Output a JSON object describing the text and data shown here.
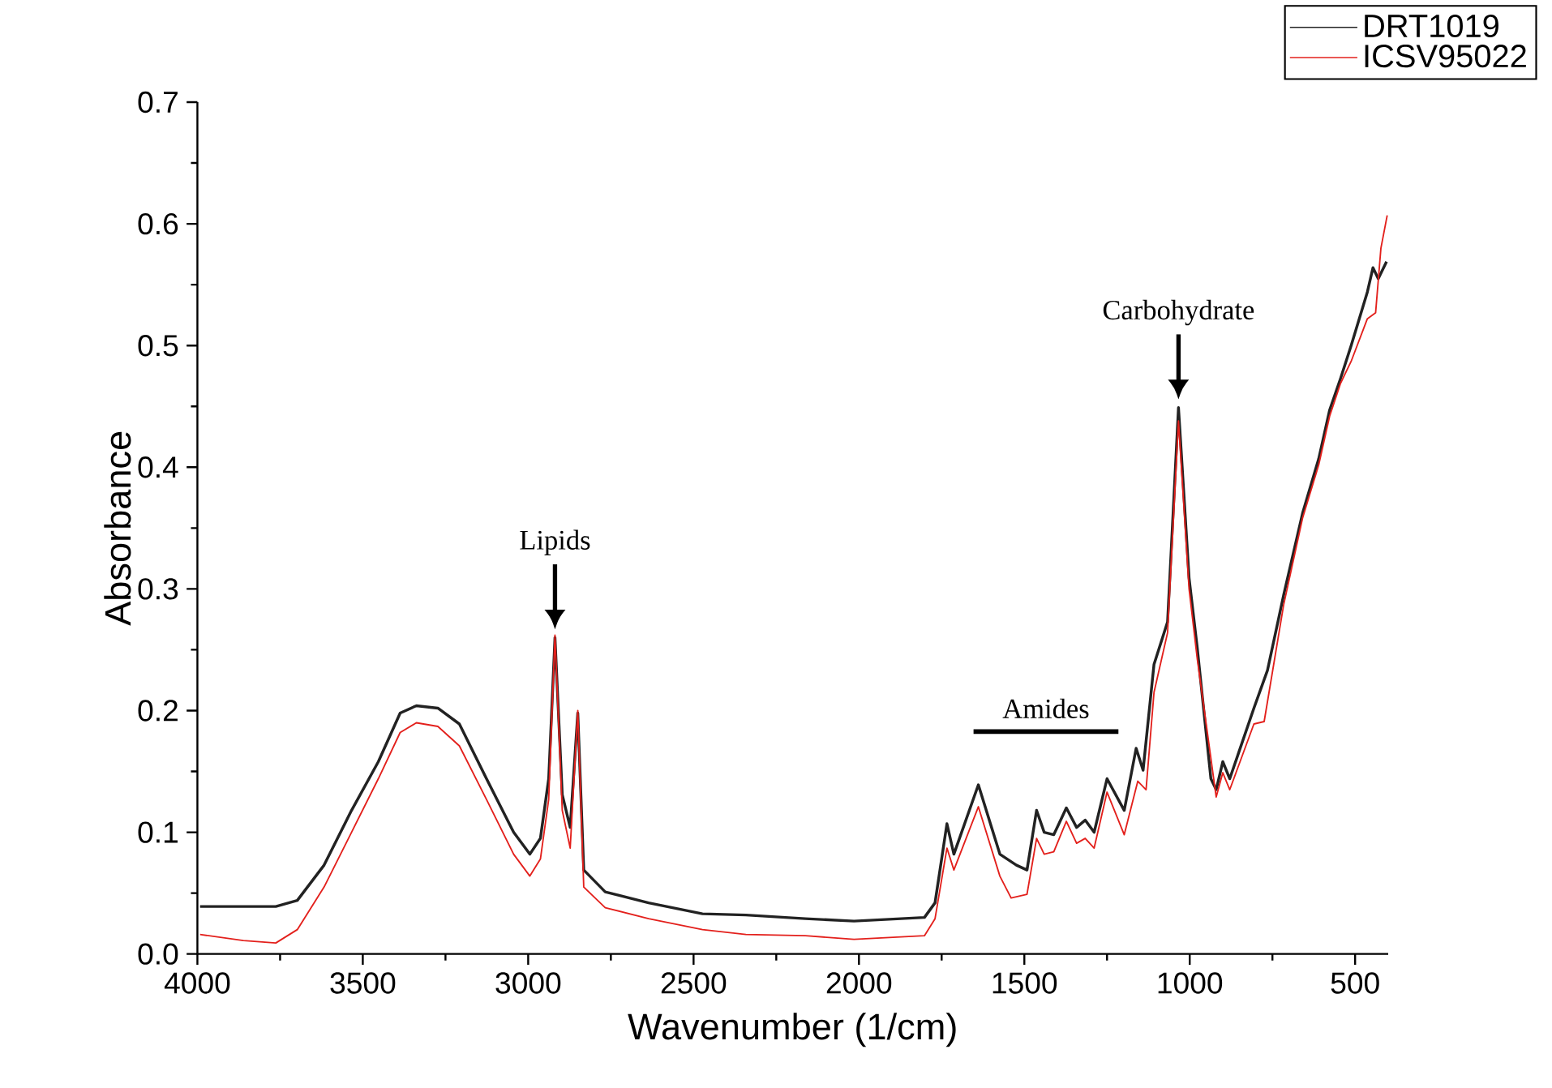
{
  "chart_data": {
    "type": "line",
    "xlabel": "Wavenumber (1/cm)",
    "ylabel": "Absorbance",
    "xlim": [
      4000,
      400
    ],
    "ylim": [
      0,
      0.7
    ],
    "xticks": [
      4000,
      3500,
      3000,
      2500,
      2000,
      1500,
      1000,
      500
    ],
    "yticks": [
      {
        "value": 0,
        "label": "0.0"
      },
      {
        "value": 0.1,
        "label": "0.1"
      },
      {
        "value": 0.2,
        "label": "0.2"
      },
      {
        "value": 0.3,
        "label": "0.3"
      },
      {
        "value": 0.4,
        "label": "0.4"
      },
      {
        "value": 0.5,
        "label": "0.5"
      },
      {
        "value": 0.6,
        "label": "0.6"
      },
      {
        "value": 0.7,
        "label": "0.7"
      }
    ],
    "legend": "top right",
    "grid": false,
    "marker": "none",
    "line_style": "solid",
    "annotations": [
      {
        "text": "Lipids",
        "x": 2919,
        "y": 0.26
      },
      {
        "text": "Carbohydrate",
        "x": 1034,
        "y": 0.449
      },
      "Amides"
    ],
    "series": [
      {
        "name": "DRT1019",
        "color": "#222222",
        "x": [
          3992,
          3763,
          3698,
          3617,
          3534,
          3453,
          3387,
          3338,
          3273,
          3208,
          3126,
          3044,
          2995,
          2963,
          2938,
          2919,
          2897,
          2873,
          2850,
          2832,
          2767,
          2636,
          2473,
          2342,
          2162,
          2015,
          1802,
          1770,
          1734,
          1713,
          1639,
          1574,
          1524,
          1492,
          1463,
          1440,
          1411,
          1373,
          1342,
          1316,
          1289,
          1250,
          1198,
          1162,
          1141,
          1108,
          1067,
          1034,
          1002,
          977,
          936,
          920,
          900,
          879,
          806,
          765,
          716,
          659,
          610,
          577,
          544,
          512,
          463,
          446,
          430,
          405
        ],
        "values": [
          0.039,
          0.039,
          0.044,
          0.073,
          0.118,
          0.158,
          0.198,
          0.204,
          0.202,
          0.189,
          0.144,
          0.1,
          0.082,
          0.095,
          0.144,
          0.26,
          0.131,
          0.104,
          0.198,
          0.069,
          0.051,
          0.042,
          0.033,
          0.032,
          0.029,
          0.027,
          0.03,
          0.042,
          0.107,
          0.082,
          0.139,
          0.082,
          0.073,
          0.069,
          0.118,
          0.1,
          0.098,
          0.12,
          0.104,
          0.11,
          0.1,
          0.144,
          0.118,
          0.169,
          0.151,
          0.238,
          0.273,
          0.449,
          0.309,
          0.251,
          0.144,
          0.135,
          0.158,
          0.144,
          0.202,
          0.233,
          0.295,
          0.362,
          0.407,
          0.447,
          0.473,
          0.5,
          0.544,
          0.564,
          0.555,
          0.569
        ]
      },
      {
        "name": "ICSV95022",
        "color": "#e3201c",
        "x": [
          3992,
          3861,
          3763,
          3698,
          3617,
          3534,
          3453,
          3387,
          3338,
          3273,
          3208,
          3126,
          3044,
          2995,
          2963,
          2938,
          2919,
          2897,
          2873,
          2850,
          2832,
          2767,
          2636,
          2473,
          2342,
          2162,
          2015,
          1802,
          1770,
          1734,
          1713,
          1639,
          1574,
          1540,
          1492,
          1463,
          1440,
          1411,
          1373,
          1342,
          1316,
          1289,
          1250,
          1198,
          1157,
          1132,
          1108,
          1067,
          1034,
          1002,
          977,
          920,
          900,
          879,
          806,
          775,
          716,
          659,
          610,
          577,
          544,
          512,
          463,
          438,
          422,
          403
        ],
        "values": [
          0.016,
          0.011,
          0.009,
          0.02,
          0.055,
          0.1,
          0.144,
          0.182,
          0.19,
          0.187,
          0.171,
          0.127,
          0.082,
          0.064,
          0.078,
          0.127,
          0.262,
          0.118,
          0.087,
          0.2,
          0.055,
          0.038,
          0.029,
          0.02,
          0.016,
          0.015,
          0.012,
          0.015,
          0.029,
          0.087,
          0.069,
          0.121,
          0.064,
          0.046,
          0.049,
          0.095,
          0.082,
          0.084,
          0.109,
          0.091,
          0.095,
          0.087,
          0.133,
          0.098,
          0.142,
          0.135,
          0.215,
          0.264,
          0.438,
          0.3,
          0.242,
          0.129,
          0.149,
          0.135,
          0.189,
          0.191,
          0.287,
          0.358,
          0.402,
          0.442,
          0.469,
          0.487,
          0.522,
          0.527,
          0.58,
          0.607
        ]
      }
    ]
  }
}
